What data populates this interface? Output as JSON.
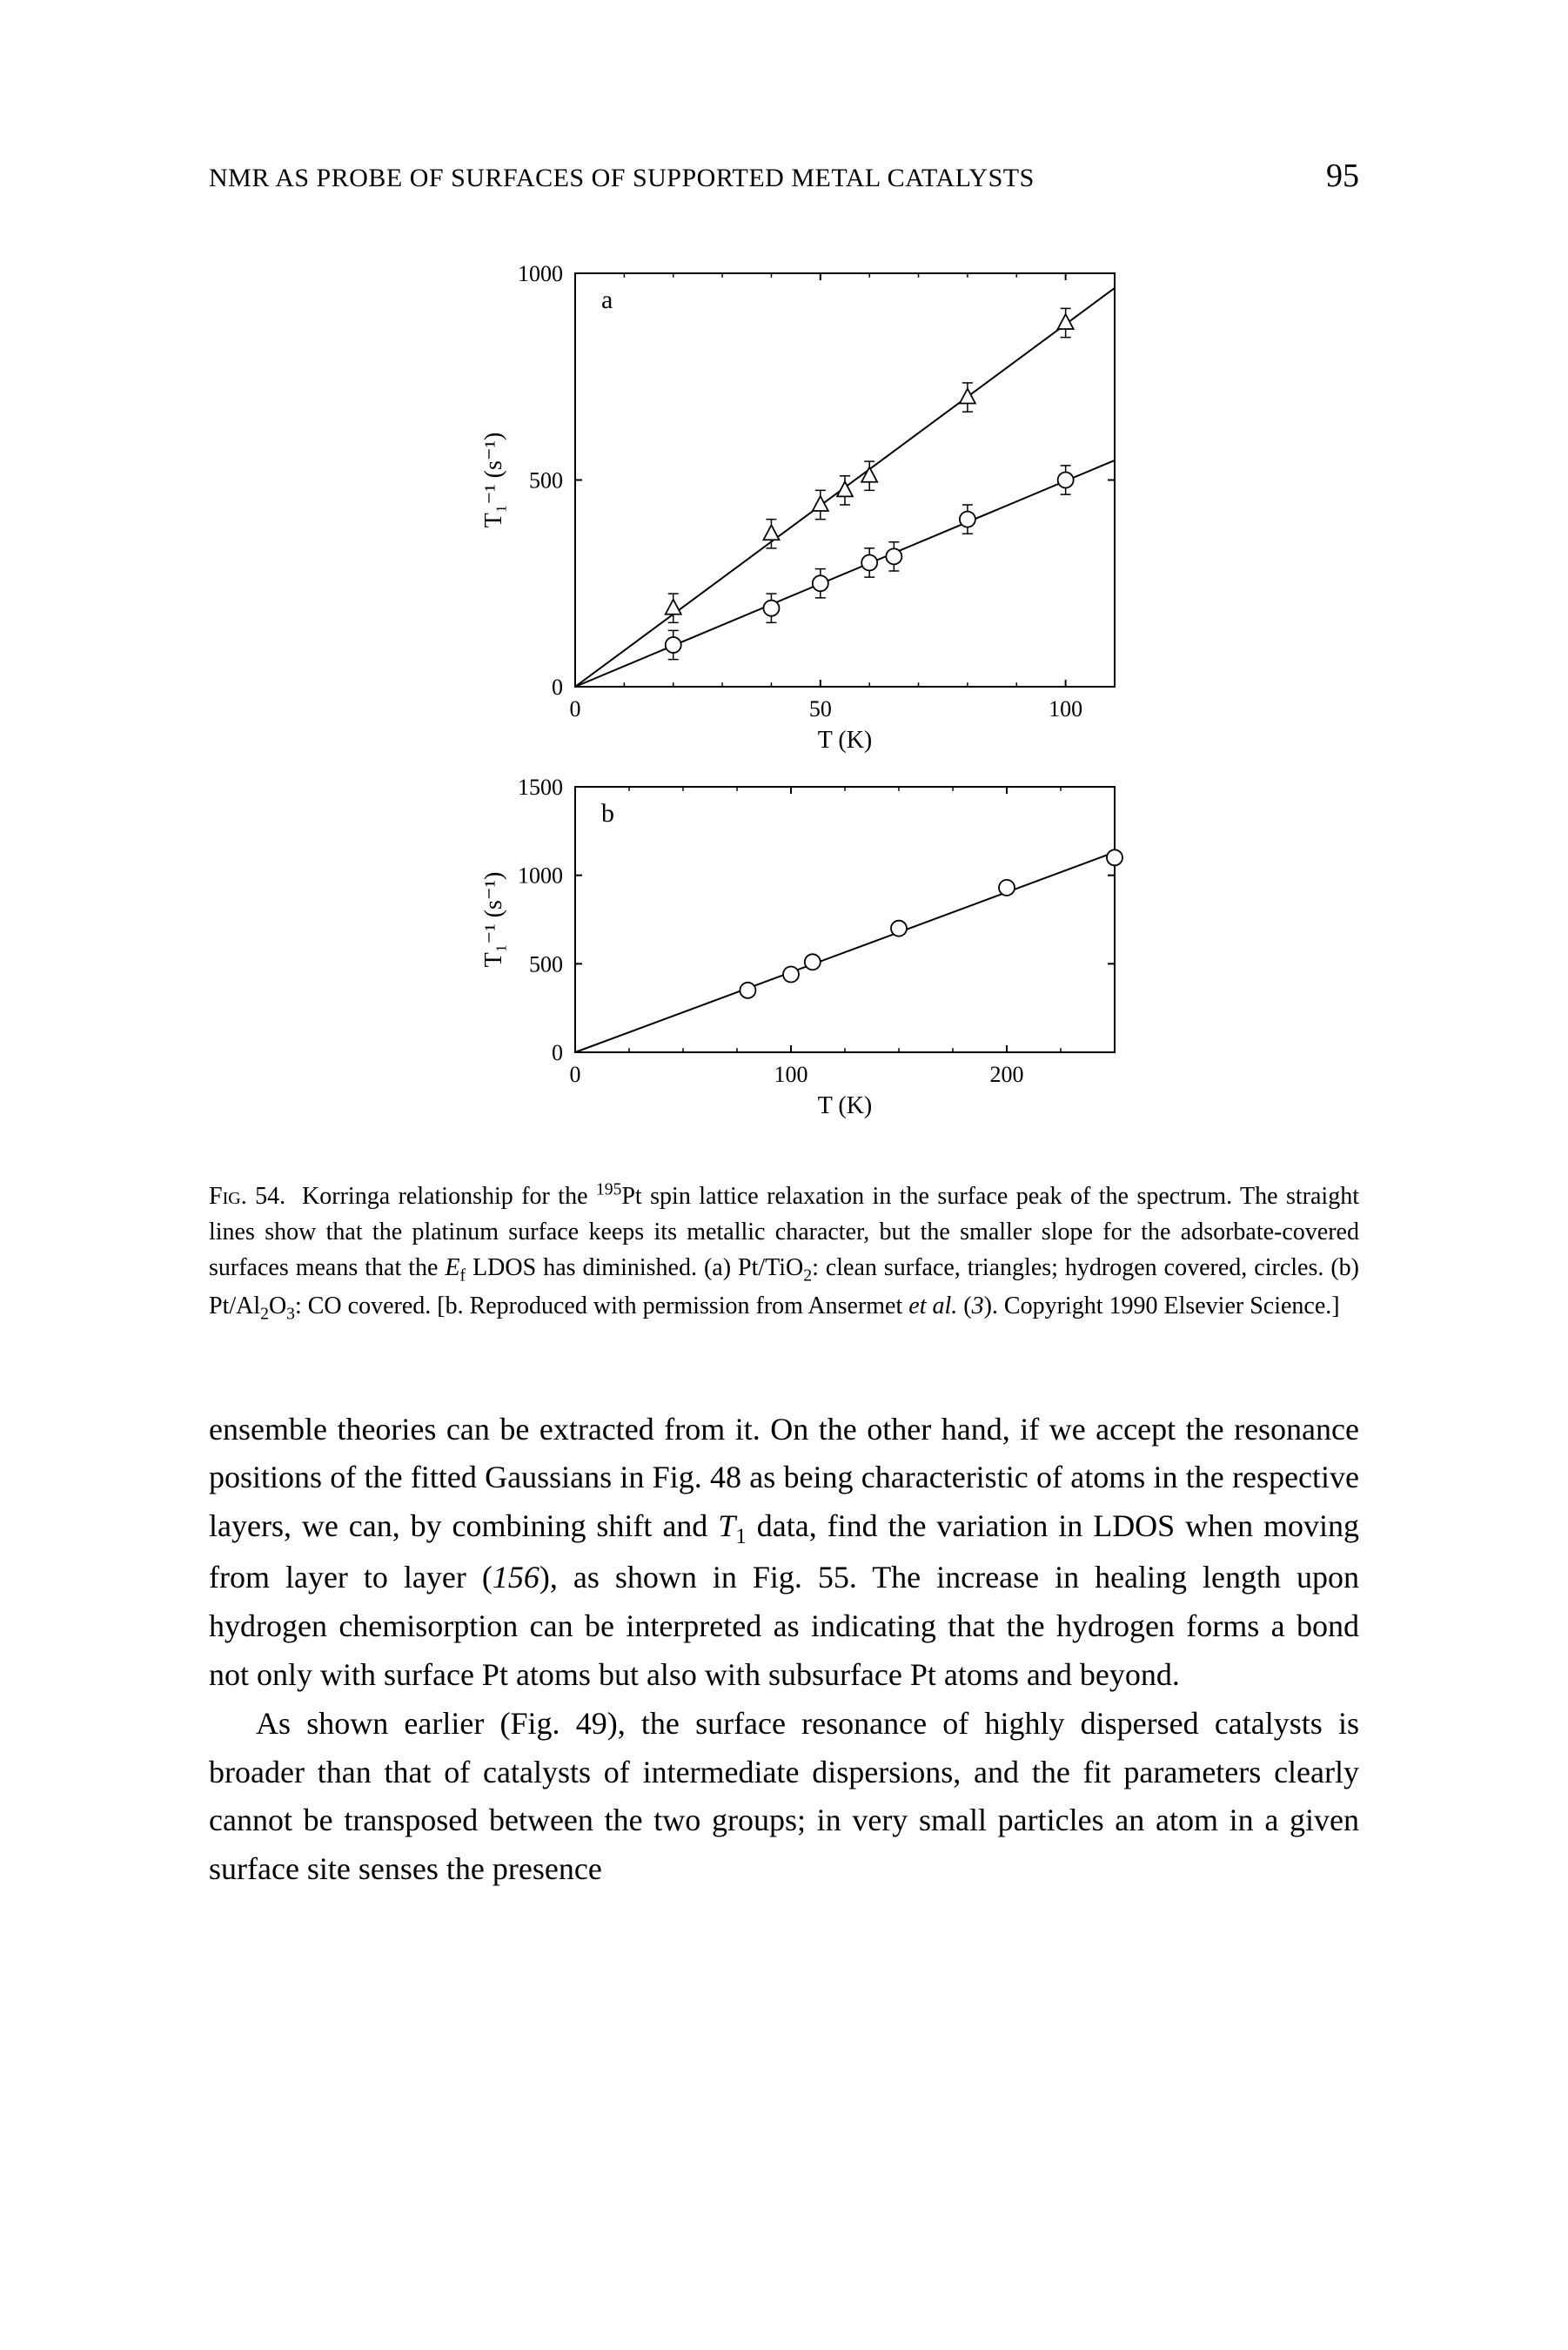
{
  "header": {
    "running_head": "NMR AS PROBE OF SURFACES OF SUPPORTED METAL CATALYSTS",
    "page_number": "95"
  },
  "figure": {
    "chart_a": {
      "type": "scatter-line",
      "panel_label": "a",
      "xlabel": "T (K)",
      "ylabel": "T₁⁻¹ (s⁻¹)",
      "xlim": [
        0,
        110
      ],
      "ylim": [
        0,
        1000
      ],
      "xticks": [
        0,
        50,
        100
      ],
      "yticks": [
        0,
        500,
        1000
      ],
      "minor_xtick_step": 10,
      "minor_ytick_step": 100,
      "background_color": "#ffffff",
      "axis_color": "#000000",
      "tick_length": 8,
      "line_width": 2,
      "label_fontsize": 28,
      "tick_fontsize": 26,
      "series": [
        {
          "name": "clean-triangles",
          "marker": "triangle",
          "marker_size": 10,
          "marker_fill": "none",
          "marker_stroke": "#000000",
          "has_errorbars": true,
          "errorbar_dy": 35,
          "line_through_origin": true,
          "points": [
            {
              "x": 20,
              "y": 190
            },
            {
              "x": 40,
              "y": 370
            },
            {
              "x": 50,
              "y": 440
            },
            {
              "x": 55,
              "y": 475
            },
            {
              "x": 60,
              "y": 510
            },
            {
              "x": 80,
              "y": 700
            },
            {
              "x": 100,
              "y": 880
            }
          ]
        },
        {
          "name": "hydrogen-circles",
          "marker": "circle",
          "marker_size": 9,
          "marker_fill": "none",
          "marker_stroke": "#000000",
          "has_errorbars": true,
          "errorbar_dy": 35,
          "line_through_origin": true,
          "points": [
            {
              "x": 20,
              "y": 101
            },
            {
              "x": 40,
              "y": 190
            },
            {
              "x": 50,
              "y": 250
            },
            {
              "x": 60,
              "y": 300
            },
            {
              "x": 65,
              "y": 315
            },
            {
              "x": 80,
              "y": 405
            },
            {
              "x": 100,
              "y": 500
            }
          ]
        }
      ]
    },
    "chart_b": {
      "type": "scatter-line",
      "panel_label": "b",
      "xlabel": "T (K)",
      "ylabel": "T₁⁻¹ (s⁻¹)",
      "xlim": [
        0,
        250
      ],
      "ylim": [
        0,
        1500
      ],
      "xticks": [
        0,
        100,
        200
      ],
      "yticks": [
        0,
        500,
        1000,
        1500
      ],
      "minor_xtick_step": 25,
      "minor_ytick_step": 125,
      "background_color": "#ffffff",
      "axis_color": "#000000",
      "tick_length": 8,
      "line_width": 2,
      "label_fontsize": 28,
      "tick_fontsize": 26,
      "series": [
        {
          "name": "co-circles",
          "marker": "circle",
          "marker_size": 9,
          "marker_fill": "none",
          "marker_stroke": "#000000",
          "has_errorbars": false,
          "line_through_origin": true,
          "points": [
            {
              "x": 80,
              "y": 350
            },
            {
              "x": 100,
              "y": 440
            },
            {
              "x": 110,
              "y": 510
            },
            {
              "x": 150,
              "y": 700
            },
            {
              "x": 200,
              "y": 930
            },
            {
              "x": 250,
              "y": 1100
            }
          ]
        }
      ]
    },
    "caption_html": "F<span style='font-variant:small-caps'>ig</span>. 54.&nbsp;&nbsp;Korringa relationship for the <sup>195</sup>Pt spin lattice relaxation in the surface peak of the spectrum. The straight lines show that the platinum surface keeps its metallic character, but the smaller slope for the adsorbate-covered surfaces means that the <span class='ital'>E</span><sub>f</sub> LDOS has diminished. (a) Pt/TiO<sub>2</sub>: clean surface, triangles; hydrogen covered, circles. (b) Pt/Al<sub>2</sub>O<sub>3</sub>: CO covered. [b. Reproduced with permission from Ansermet <span class='ital'>et al.</span> (<span class='ital'>3</span>). Copyright 1990 Elsevier Science.]"
  },
  "body": {
    "para1_html": "ensemble theories can be extracted from it. On the other hand, if we accept the resonance positions of the fitted Gaussians in Fig. 48 as being characteristic of atoms in the respective layers, we can, by combining shift and <span class='ital'>T</span><sub>1</sub> data, find the variation in LDOS when moving from layer to layer (<span class='ital'>156</span>), as shown in Fig. 55. The increase in healing length upon hydrogen chemisorption can be interpreted as indicating that the hydrogen forms a bond not only with surface Pt atoms but also with subsurface Pt atoms and beyond.",
    "para2_html": "As shown earlier (Fig. 49), the surface resonance of highly dispersed catalysts is broader than that of catalysts of intermediate dispersions, and the fit parameters clearly cannot be transposed between the two groups; in very small particles an atom in a given surface site senses the presence"
  }
}
